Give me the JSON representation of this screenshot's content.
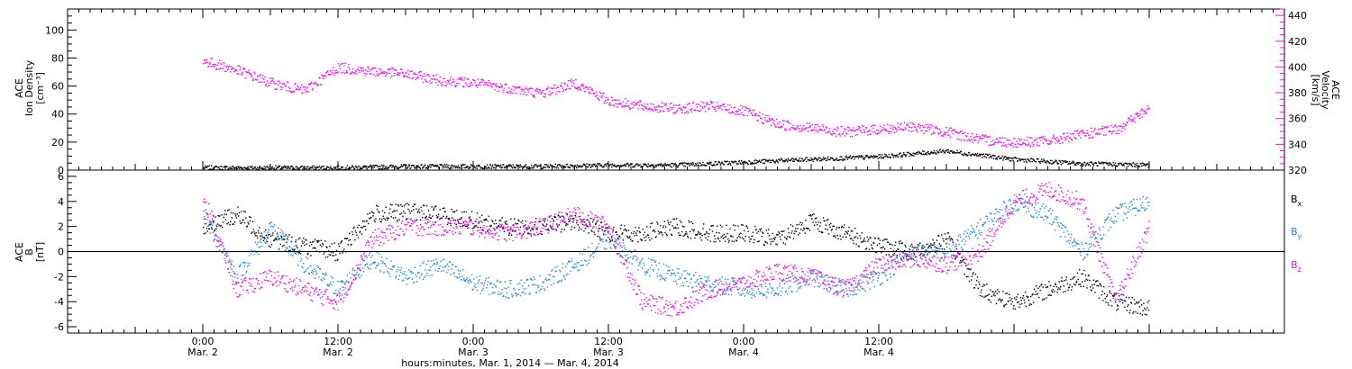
{
  "chart_data": [
    {
      "type": "scatter",
      "panel": "top",
      "ylabel_left": [
        "ACE",
        "Ion Density",
        "[cm⁻³]"
      ],
      "ylabel_right": [
        "ACE",
        "Velocity",
        "[km/s]"
      ],
      "ylim_left": [
        0,
        115
      ],
      "ylim_right": [
        320,
        445
      ],
      "yticks_left": [
        "0",
        "20",
        "40",
        "60",
        "80",
        "100"
      ],
      "yticks_right": [
        "320",
        "340",
        "360",
        "380",
        "400",
        "420",
        "440"
      ],
      "series": [
        {
          "name": "Ion Density",
          "color": "#000000",
          "axis": "left",
          "x": [
            0,
            6,
            12,
            18,
            24,
            30,
            36,
            42,
            48,
            54,
            60,
            66,
            72,
            78,
            84
          ],
          "y": [
            2,
            2,
            2,
            3,
            3,
            3,
            4,
            4,
            6,
            8,
            10,
            14,
            8,
            5,
            4
          ]
        },
        {
          "name": "Velocity",
          "color": "#ff00ff",
          "axis": "right",
          "x": [
            0,
            3,
            6,
            9,
            12,
            15,
            18,
            21,
            24,
            27,
            30,
            33,
            36,
            39,
            42,
            45,
            48,
            51,
            54,
            57,
            60,
            63,
            66,
            69,
            72,
            75,
            78,
            81,
            84
          ],
          "y": [
            405,
            398,
            388,
            382,
            400,
            397,
            395,
            390,
            388,
            384,
            380,
            388,
            374,
            370,
            368,
            370,
            366,
            356,
            353,
            350,
            352,
            354,
            350,
            344,
            342,
            343,
            348,
            352,
            368
          ]
        }
      ]
    },
    {
      "type": "scatter",
      "panel": "bottom",
      "ylabel": [
        "ACE",
        "B",
        "[nT]"
      ],
      "ylim": [
        -6.5,
        6.5
      ],
      "yticks": [
        "-6",
        "-4",
        "-2",
        "0",
        "2",
        "4",
        "6"
      ],
      "legend": [
        "Bx",
        "By",
        "Bz"
      ],
      "series": [
        {
          "name": "Bx",
          "color": "#000000",
          "x": [
            0,
            3,
            6,
            9,
            12,
            15,
            18,
            21,
            24,
            27,
            30,
            33,
            36,
            39,
            42,
            45,
            48,
            51,
            54,
            57,
            60,
            63,
            66,
            69,
            72,
            75,
            78,
            81,
            84
          ],
          "y": [
            2,
            3,
            1,
            0.5,
            0,
            3,
            3.2,
            3,
            2.5,
            2,
            2,
            2.5,
            1.5,
            1.5,
            2,
            1.5,
            1.5,
            1,
            2.5,
            1.5,
            0.5,
            0,
            1,
            -3,
            -4,
            -3,
            -2,
            -4,
            -4.5
          ]
        },
        {
          "name": "By",
          "color": "#1e88e5",
          "x": [
            0,
            3,
            6,
            9,
            12,
            15,
            18,
            21,
            24,
            27,
            30,
            33,
            36,
            39,
            42,
            45,
            48,
            51,
            54,
            57,
            60,
            63,
            66,
            69,
            72,
            75,
            78,
            81,
            84
          ],
          "y": [
            3,
            -2,
            2,
            -1,
            -3,
            -0.5,
            -2,
            -1,
            -2.5,
            -3,
            -2.5,
            -1,
            1,
            -1,
            -2,
            -2.5,
            -3,
            -3,
            -2,
            -3,
            -2,
            0,
            0,
            2,
            4,
            3,
            0,
            3,
            4
          ]
        },
        {
          "name": "Bz",
          "color": "#ff00ff",
          "x": [
            0,
            3,
            6,
            9,
            12,
            15,
            18,
            21,
            24,
            27,
            30,
            33,
            36,
            39,
            42,
            45,
            48,
            51,
            54,
            57,
            60,
            63,
            66,
            69,
            72,
            75,
            78,
            81,
            84
          ],
          "y": [
            4.5,
            -3,
            -2,
            -3,
            -4,
            1,
            2,
            2,
            2,
            1.5,
            2,
            3,
            2,
            -4,
            -4.5,
            -3,
            -2.5,
            -1.5,
            -2,
            -3,
            -1,
            -0.5,
            -1,
            0,
            4,
            5,
            4,
            -4,
            2
          ]
        }
      ]
    }
  ],
  "xaxis": {
    "range_hours": [
      -12,
      96
    ],
    "major_tick_labels": [
      {
        "hours": 0,
        "time": "0:00",
        "date": "Mar. 2"
      },
      {
        "hours": 12,
        "time": "12:00",
        "date": "Mar. 2"
      },
      {
        "hours": 24,
        "time": "0:00",
        "date": "Mar. 3"
      },
      {
        "hours": 36,
        "time": "12:00",
        "date": "Mar. 3"
      },
      {
        "hours": 48,
        "time": "0:00",
        "date": "Mar. 4"
      },
      {
        "hours": 60,
        "time": "12:00",
        "date": "Mar. 4"
      }
    ],
    "title": "hours:minutes, Mar.  1, 2014 — Mar.  4, 2014"
  },
  "legend": {
    "Bx": {
      "base": "B",
      "sub": "x",
      "color": "#000000"
    },
    "By": {
      "base": "B",
      "sub": "y",
      "color": "#1e88e5"
    },
    "Bz": {
      "base": "B",
      "sub": "z",
      "color": "#ff00ff"
    }
  }
}
